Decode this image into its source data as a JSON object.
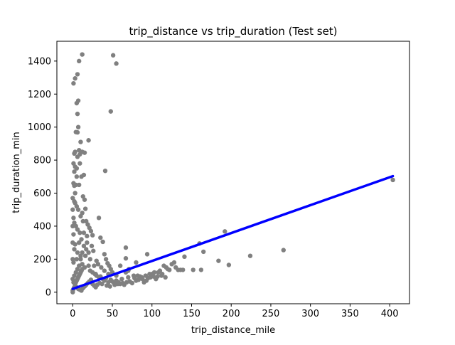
{
  "chart_data": {
    "type": "scatter",
    "title": "trip_distance vs trip_duration (Test set)",
    "xlabel": "trip_distance_mile",
    "ylabel": "trip_duration_min",
    "xlim": [
      -20,
      425
    ],
    "ylim": [
      -70,
      1520
    ],
    "xticks": [
      0,
      50,
      100,
      150,
      200,
      250,
      300,
      350,
      400
    ],
    "yticks": [
      0,
      200,
      400,
      600,
      800,
      1000,
      1200,
      1400
    ],
    "grid": false,
    "series": [
      {
        "kind": "points",
        "color": "#808080",
        "points": [
          [
            1,
            1265
          ],
          [
            3,
            1295
          ],
          [
            6,
            1320
          ],
          [
            8,
            1400
          ],
          [
            12,
            1440
          ],
          [
            7,
            1160
          ],
          [
            5,
            1145
          ],
          [
            6,
            1080
          ],
          [
            7,
            1000
          ],
          [
            4,
            970
          ],
          [
            6,
            968
          ],
          [
            10,
            910
          ],
          [
            3,
            850
          ],
          [
            2,
            840
          ],
          [
            8,
            860
          ],
          [
            12,
            850
          ],
          [
            15,
            845
          ],
          [
            6,
            820
          ],
          [
            9,
            835
          ],
          [
            1,
            780
          ],
          [
            3,
            760
          ],
          [
            2,
            730
          ],
          [
            14,
            710
          ],
          [
            5,
            700
          ],
          [
            1,
            660
          ],
          [
            2,
            645
          ],
          [
            8,
            650
          ],
          [
            0,
            570
          ],
          [
            3,
            540
          ],
          [
            5,
            520
          ],
          [
            7,
            500
          ],
          [
            12,
            480
          ],
          [
            16,
            505
          ],
          [
            10,
            460
          ],
          [
            13,
            430
          ],
          [
            2,
            420
          ],
          [
            4,
            400
          ],
          [
            6,
            380
          ],
          [
            9,
            360
          ],
          [
            14,
            360
          ],
          [
            18,
            340
          ],
          [
            11,
            320
          ],
          [
            8,
            300
          ],
          [
            3,
            290
          ],
          [
            2,
            260
          ],
          [
            6,
            240
          ],
          [
            10,
            220
          ],
          [
            5,
            200
          ],
          [
            1,
            180
          ],
          [
            12,
            170
          ],
          [
            15,
            150
          ],
          [
            20,
            160
          ],
          [
            22,
            130
          ],
          [
            25,
            120
          ],
          [
            28,
            110
          ],
          [
            30,
            100
          ],
          [
            33,
            90
          ],
          [
            35,
            95
          ],
          [
            38,
            80
          ],
          [
            40,
            70
          ],
          [
            42,
            85
          ],
          [
            45,
            60
          ],
          [
            48,
            75
          ],
          [
            50,
            65
          ],
          [
            52,
            55
          ],
          [
            55,
            70
          ],
          [
            58,
            60
          ],
          [
            60,
            50
          ],
          [
            62,
            80
          ],
          [
            65,
            45
          ],
          [
            68,
            60
          ],
          [
            70,
            90
          ],
          [
            72,
            65
          ],
          [
            75,
            55
          ],
          [
            78,
            85
          ],
          [
            80,
            70
          ],
          [
            82,
            100
          ],
          [
            85,
            95
          ],
          [
            88,
            80
          ],
          [
            90,
            60
          ],
          [
            92,
            100
          ],
          [
            95,
            85
          ],
          [
            98,
            90
          ],
          [
            100,
            110
          ],
          [
            102,
            95
          ],
          [
            105,
            80
          ],
          [
            108,
            120
          ],
          [
            110,
            130
          ],
          [
            112,
            100
          ],
          [
            115,
            160
          ],
          [
            118,
            150
          ],
          [
            120,
            140
          ],
          [
            122,
            135
          ],
          [
            125,
            170
          ],
          [
            128,
            180
          ],
          [
            130,
            150
          ],
          [
            133,
            135
          ],
          [
            136,
            135
          ],
          [
            139,
            135
          ],
          [
            141,
            215
          ],
          [
            152,
            135
          ],
          [
            160,
            295
          ],
          [
            162,
            135
          ],
          [
            165,
            245
          ],
          [
            184,
            190
          ],
          [
            192,
            368
          ],
          [
            197,
            165
          ],
          [
            224,
            220
          ],
          [
            266,
            255
          ],
          [
            404,
            680
          ],
          [
            48,
            1095
          ],
          [
            51,
            1435
          ],
          [
            55,
            1385
          ],
          [
            20,
            920
          ],
          [
            41,
            735
          ],
          [
            33,
            450
          ],
          [
            35,
            330
          ],
          [
            38,
            305
          ],
          [
            40,
            230
          ],
          [
            42,
            200
          ],
          [
            44,
            175
          ],
          [
            46,
            160
          ],
          [
            48,
            140
          ],
          [
            30,
            190
          ],
          [
            32,
            170
          ],
          [
            26,
            250
          ],
          [
            24,
            280
          ],
          [
            22,
            200
          ],
          [
            20,
            240
          ],
          [
            18,
            300
          ],
          [
            17,
            260
          ],
          [
            16,
            220
          ],
          [
            14,
            280
          ],
          [
            12,
            240
          ],
          [
            10,
            200
          ],
          [
            8,
            160
          ],
          [
            6,
            140
          ],
          [
            4,
            120
          ],
          [
            2,
            100
          ],
          [
            0,
            80
          ],
          [
            1,
            60
          ],
          [
            3,
            40
          ],
          [
            5,
            30
          ],
          [
            7,
            20
          ],
          [
            9,
            15
          ],
          [
            11,
            10
          ],
          [
            13,
            25
          ],
          [
            15,
            35
          ],
          [
            17,
            45
          ],
          [
            19,
            55
          ],
          [
            21,
            65
          ],
          [
            23,
            75
          ],
          [
            25,
            50
          ],
          [
            27,
            40
          ],
          [
            29,
            30
          ],
          [
            31,
            45
          ],
          [
            34,
            55
          ],
          [
            37,
            50
          ],
          [
            43,
            40
          ],
          [
            47,
            35
          ],
          [
            53,
            45
          ],
          [
            57,
            50
          ],
          [
            63,
            55
          ],
          [
            67,
            120
          ],
          [
            67,
            270
          ],
          [
            67,
            205
          ],
          [
            71,
            140
          ],
          [
            77,
            100
          ],
          [
            83,
            75
          ],
          [
            87,
            90
          ],
          [
            93,
            70
          ],
          [
            97,
            110
          ],
          [
            103,
            120
          ],
          [
            107,
            95
          ],
          [
            113,
            110
          ],
          [
            117,
            90
          ],
          [
            94,
            230
          ],
          [
            80,
            180
          ],
          [
            60,
            160
          ],
          [
            70,
            130
          ],
          [
            50,
            120
          ],
          [
            55,
            100
          ],
          [
            45,
            110
          ],
          [
            40,
            130
          ],
          [
            36,
            150
          ],
          [
            29,
            110
          ],
          [
            27,
            160
          ],
          [
            0,
            0
          ],
          [
            0,
            10
          ],
          [
            1,
            20
          ],
          [
            2,
            30
          ],
          [
            3,
            50
          ],
          [
            4,
            60
          ],
          [
            5,
            70
          ],
          [
            6,
            80
          ],
          [
            7,
            90
          ],
          [
            8,
            100
          ],
          [
            9,
            110
          ],
          [
            10,
            120
          ],
          [
            11,
            130
          ],
          [
            12,
            140
          ],
          [
            0,
            200
          ],
          [
            0,
            300
          ],
          [
            0,
            400
          ],
          [
            0,
            500
          ],
          [
            1,
            350
          ],
          [
            1,
            450
          ],
          [
            2,
            550
          ],
          [
            3,
            600
          ],
          [
            4,
            650
          ],
          [
            5,
            750
          ],
          [
            9,
            780
          ],
          [
            11,
            700
          ],
          [
            13,
            580
          ],
          [
            15,
            560
          ],
          [
            17,
            430
          ],
          [
            19,
            410
          ],
          [
            21,
            390
          ],
          [
            23,
            370
          ],
          [
            25,
            345
          ]
        ]
      },
      {
        "kind": "regression-line",
        "color": "#0000ff",
        "x": [
          0,
          404
        ],
        "y": [
          20,
          703
        ]
      }
    ]
  }
}
